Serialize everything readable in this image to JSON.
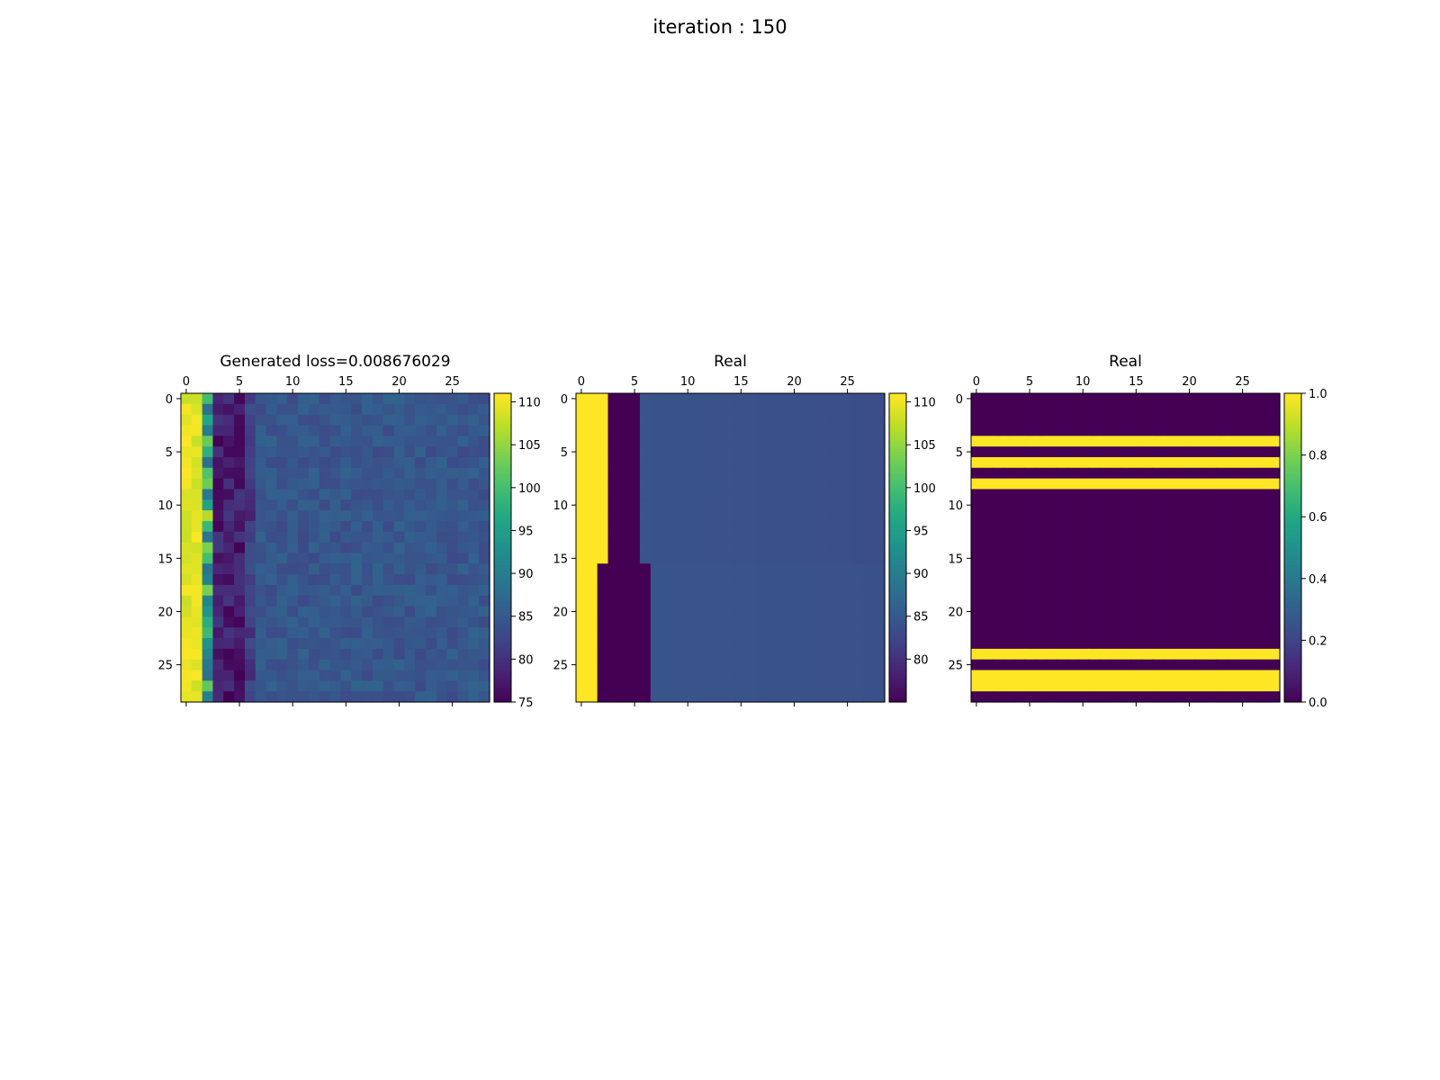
{
  "figure": {
    "suptitle": "iteration : 150"
  },
  "chart_data": [
    {
      "type": "heatmap",
      "title": "Generated loss=0.008676029",
      "rows": 29,
      "cols": 29,
      "x_ticks": [
        0,
        5,
        10,
        15,
        20,
        25
      ],
      "y_ticks": [
        0,
        5,
        10,
        15,
        20,
        25
      ],
      "colorbar": {
        "vmin": 75,
        "vmax": 111,
        "ticks": [
          75,
          80,
          85,
          90,
          95,
          100,
          105,
          110
        ]
      },
      "colormap": "viridis",
      "description_values": {
        "col0_1": 111,
        "col2": 105,
        "cols3_6": 77,
        "cols7_28": 84
      }
    },
    {
      "type": "heatmap",
      "title": "Real",
      "rows": 29,
      "cols": 29,
      "x_ticks": [
        0,
        5,
        10,
        15,
        20,
        25
      ],
      "y_ticks": [
        0,
        5,
        10,
        15,
        20,
        25
      ],
      "colorbar": {
        "vmin": 75,
        "vmax": 111,
        "ticks": [
          80,
          85,
          90,
          95,
          100,
          105,
          110
        ]
      },
      "colormap": "viridis",
      "description_values": {
        "high": 111,
        "low": 75,
        "background": 84
      }
    },
    {
      "type": "heatmap",
      "title": "Real",
      "rows": 29,
      "cols": 29,
      "x_ticks": [
        0,
        5,
        10,
        15,
        20,
        25
      ],
      "y_ticks": [
        0,
        5,
        10,
        15,
        20,
        25
      ],
      "colorbar": {
        "vmin": 0.0,
        "vmax": 1.0,
        "ticks": [
          0.0,
          0.2,
          0.4,
          0.6,
          0.8,
          1.0
        ]
      },
      "colormap": "viridis",
      "one_rows": [
        4,
        6,
        8,
        24,
        26,
        27
      ]
    }
  ]
}
